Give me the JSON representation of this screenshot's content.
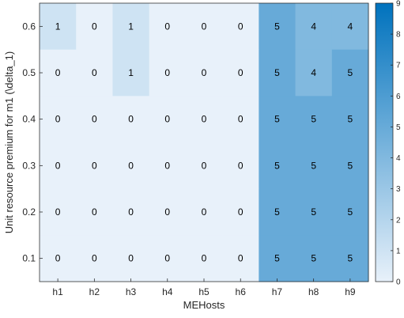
{
  "chart_data": {
    "type": "heatmap",
    "xlabel": "MEHosts",
    "ylabel": "Unit resource premium for m1 (\\delta_1)",
    "x_categories": [
      "h1",
      "h2",
      "h3",
      "h4",
      "h5",
      "h6",
      "h7",
      "h8",
      "h9"
    ],
    "y_categories": [
      "0.6",
      "0.5",
      "0.4",
      "0.3",
      "0.2",
      "0.1"
    ],
    "values": [
      [
        1,
        0,
        1,
        0,
        0,
        0,
        5,
        4,
        4
      ],
      [
        0,
        0,
        1,
        0,
        0,
        0,
        5,
        4,
        5
      ],
      [
        0,
        0,
        0,
        0,
        0,
        0,
        5,
        5,
        5
      ],
      [
        0,
        0,
        0,
        0,
        0,
        0,
        5,
        5,
        5
      ],
      [
        0,
        0,
        0,
        0,
        0,
        0,
        5,
        5,
        5
      ],
      [
        0,
        0,
        0,
        0,
        0,
        0,
        5,
        5,
        5
      ]
    ],
    "colorbar": {
      "range": [
        0,
        9
      ],
      "ticks": [
        "0",
        "1",
        "2",
        "3",
        "4",
        "5",
        "6",
        "7",
        "8",
        "9"
      ],
      "low_color": "#e8f1fa",
      "high_color": "#0072bd"
    }
  }
}
